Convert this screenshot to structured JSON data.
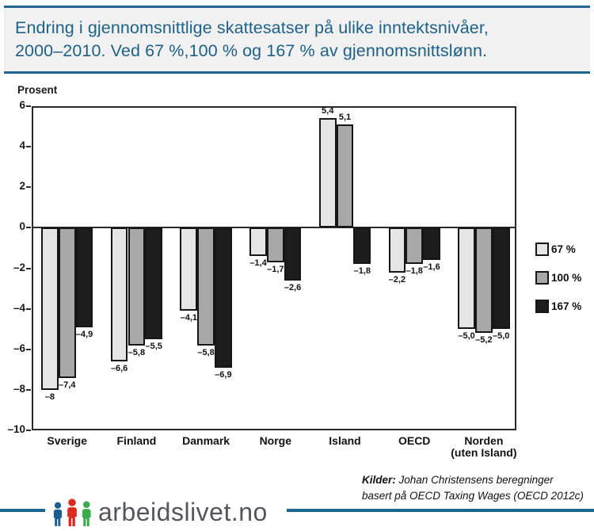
{
  "header": {
    "title_line1": "Endring i gjennomsnittlige skattesatser på ulike inntektsnivåer,",
    "title_line2": "2000–2010. Ved 67 %,100 % og 167 % av gjennomsnittslønn.",
    "accent_color": "#1e6494",
    "title_color": "#1d6189",
    "background_color": "#f1f1f1"
  },
  "chart_data": {
    "type": "bar",
    "ylabel": "Prosent",
    "ylim": [
      -10,
      6
    ],
    "ytick_step": 2,
    "ytick_labels": [
      "6",
      "4",
      "2",
      "0",
      "–2",
      "–4",
      "–6",
      "–8",
      "–10"
    ],
    "grid": false,
    "legend_position": "right",
    "categories": [
      "Sverige",
      "Finland",
      "Danmark",
      "Norge",
      "Island",
      "OECD",
      "Norden\n(uten Island)"
    ],
    "series": [
      {
        "name": "67 %",
        "color": "#e5e5e5",
        "values": [
          -8,
          -6.6,
          -4.1,
          -1.4,
          5.4,
          -2.2,
          -5.0
        ],
        "labels": [
          "–8",
          "–6,6",
          "–4,1",
          "–1,4",
          "5,4",
          "–2,2",
          "–5,0"
        ]
      },
      {
        "name": "100 %",
        "color": "#a8a8a8",
        "values": [
          -7.4,
          -5.8,
          -5.8,
          -1.7,
          5.1,
          -1.8,
          -5.2
        ],
        "labels": [
          "–7,4",
          "–5,8",
          "–5,8",
          "–1,7",
          "5,1",
          "–1,8",
          "–5,2"
        ]
      },
      {
        "name": "167 %",
        "color": "#1d1d1d",
        "values": [
          -4.9,
          -5.5,
          -6.9,
          -2.6,
          -1.8,
          -1.6,
          -5.0
        ],
        "labels": [
          "–4,9",
          "–5,5",
          "–6,9",
          "–2,6",
          "–1,8",
          "–1,6",
          "–5,0"
        ]
      }
    ]
  },
  "source": {
    "label": "Kilder:",
    "text1": "Johan Christensens beregninger",
    "text2": "basert på OECD Taxing Wages (OECD 2012c)"
  },
  "footer": {
    "logo_text": "arbeidslivet.no",
    "line_color": "#1e6494",
    "logo_text_color": "#53575c",
    "icon_colors": [
      "#1c5f8e",
      "#dd2a1f",
      "#3aaa4c"
    ]
  }
}
